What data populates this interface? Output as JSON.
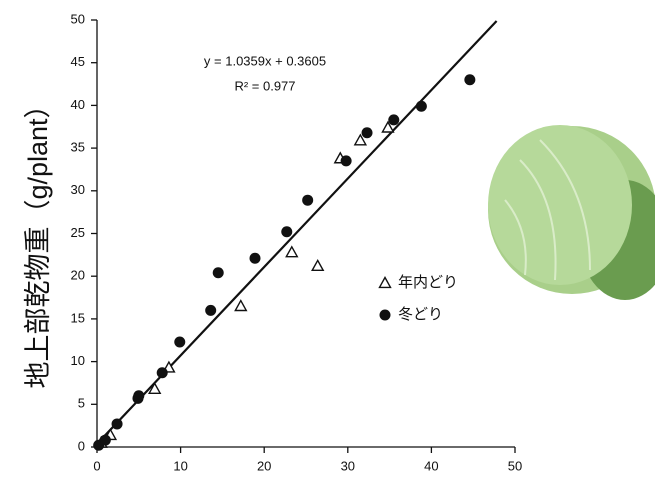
{
  "chart_data": {
    "type": "scatter",
    "y_label": "地上部乾物重（g/plant）",
    "xlim": [
      0,
      50
    ],
    "xticks": [
      0,
      10,
      20,
      30,
      40,
      50
    ],
    "ylim": [
      0,
      50
    ],
    "yticks": [
      0,
      5,
      10,
      15,
      20,
      25,
      30,
      35,
      40,
      45,
      50
    ],
    "legend_position": "right",
    "series": [
      {
        "name": "年内どり",
        "marker": "open-triangle",
        "color": "#111111",
        "x": [
          0.5,
          1.6,
          6.9,
          8.6,
          17.2,
          23.3,
          26.4,
          29.1,
          31.5,
          34.8
        ],
        "values": [
          0.5,
          1.4,
          6.8,
          9.3,
          16.5,
          22.8,
          21.2,
          33.8,
          35.9,
          37.4
        ]
      },
      {
        "name": "冬どり",
        "marker": "filled-circle",
        "color": "#111111",
        "x": [
          0.2,
          1.0,
          2.4,
          4.9,
          5.0,
          7.8,
          9.9,
          13.6,
          14.5,
          18.9,
          22.7,
          25.2,
          29.8,
          32.3,
          35.5,
          38.8,
          44.6
        ],
        "values": [
          0.2,
          0.8,
          2.7,
          5.7,
          6.0,
          8.7,
          12.3,
          16.0,
          20.4,
          22.1,
          25.2,
          28.9,
          33.5,
          36.8,
          38.3,
          39.9,
          43.0
        ]
      }
    ],
    "trendline": {
      "equation": "y = 1.0359x + 0.3605",
      "r_squared": "R² = 0.977",
      "slope": 1.0359,
      "intercept": 0.3605,
      "x_start": 0,
      "x_end": 47.8
    }
  }
}
